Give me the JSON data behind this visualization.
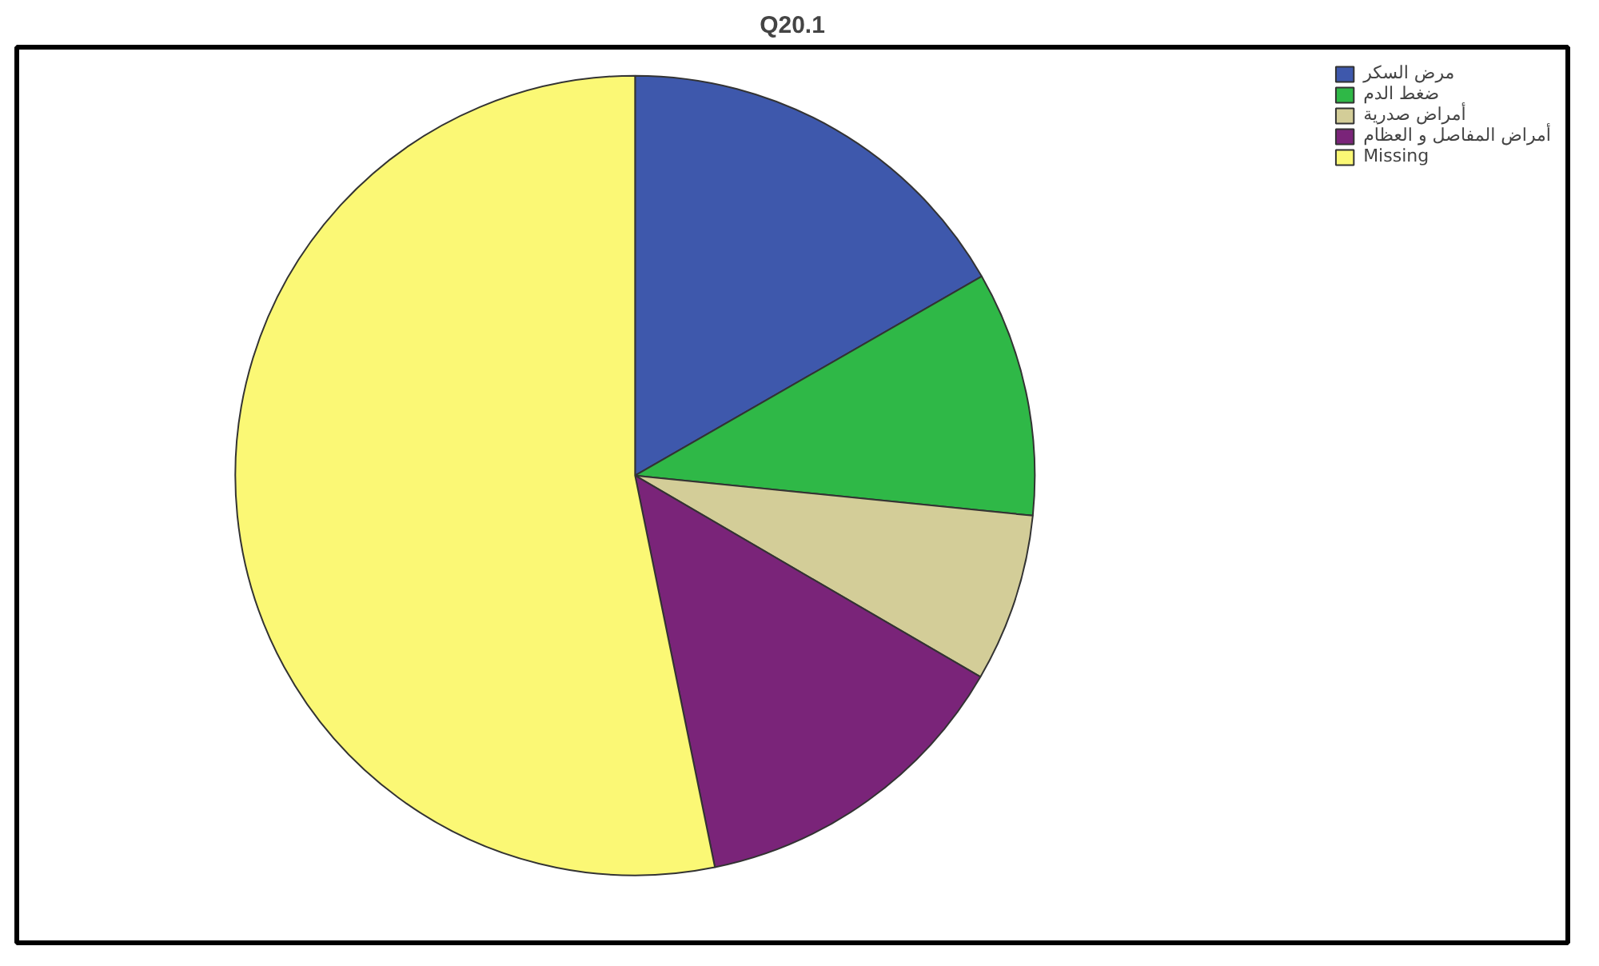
{
  "chart_data": {
    "type": "pie",
    "title": "Q20.1",
    "categories": [
      "مرض السكر",
      "ضغط الدم",
      "أمراض صدرية",
      "أمراض المفاصل و العظام",
      "Missing"
    ],
    "values": [
      16.7,
      9.9,
      6.8,
      13.4,
      53.2
    ],
    "colors": [
      "#3e58ac",
      "#2fb847",
      "#d3cd98",
      "#7a2479",
      "#fbf875"
    ],
    "legend": "top right"
  }
}
